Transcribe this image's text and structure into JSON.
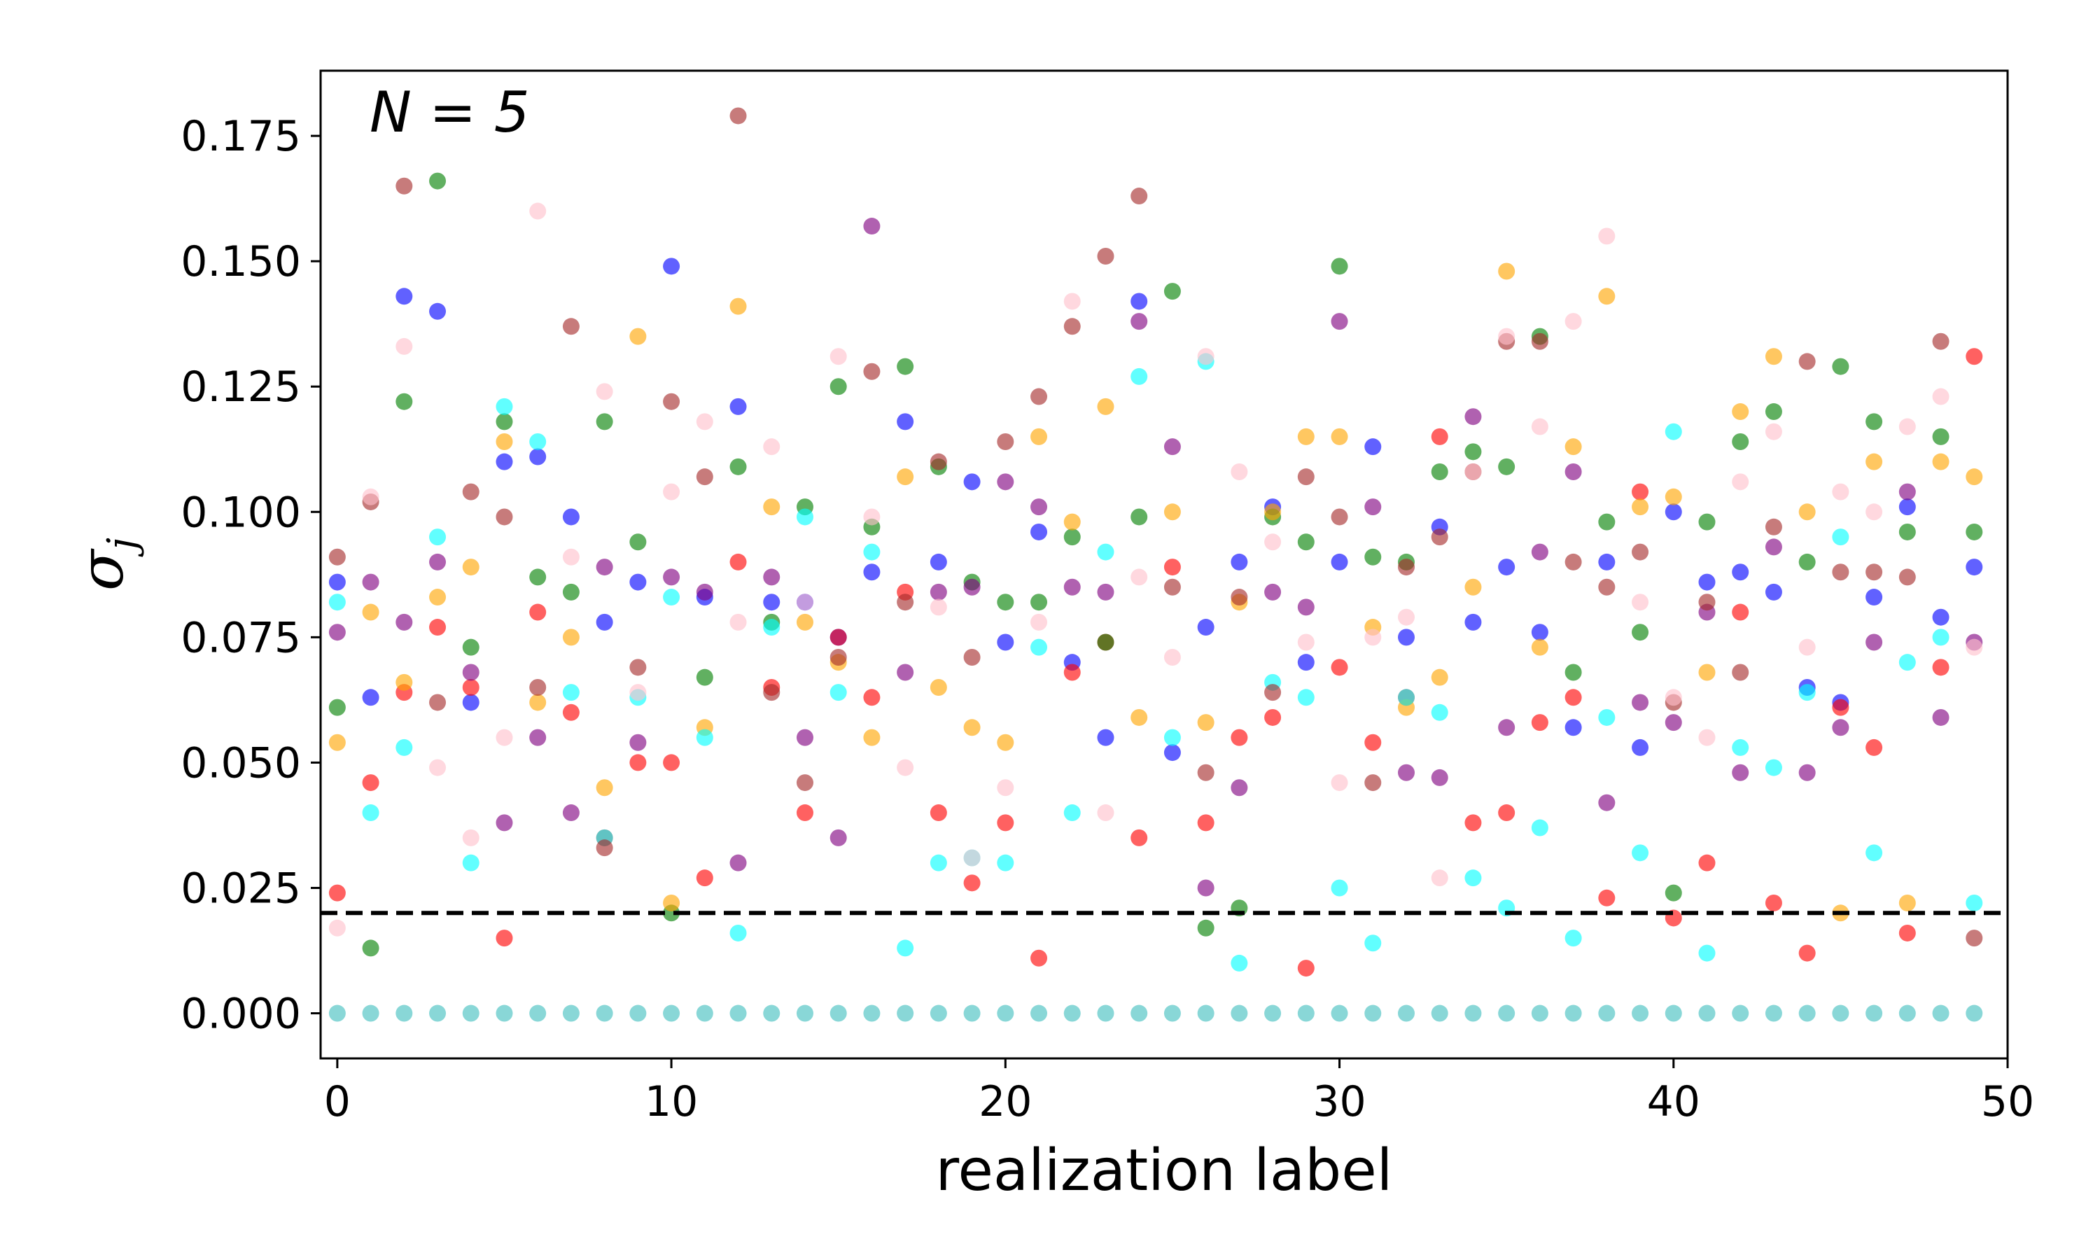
{
  "chart_data": {
    "type": "scatter",
    "title": "",
    "annotation": "N = 5",
    "xlabel": "realization label",
    "ylabel": "σ_j",
    "ylabel_main": "σ",
    "ylabel_sub": "j",
    "xlim": [
      -0.5,
      50
    ],
    "ylim": [
      -0.009,
      0.188
    ],
    "xticks": [
      0,
      10,
      20,
      30,
      40,
      50
    ],
    "xtick_labels": [
      "0",
      "10",
      "20",
      "30",
      "40",
      "50"
    ],
    "yticks": [
      0.0,
      0.025,
      0.05,
      0.075,
      0.1,
      0.125,
      0.15,
      0.175
    ],
    "ytick_labels": [
      "0.000",
      "0.025",
      "0.050",
      "0.075",
      "0.100",
      "0.125",
      "0.150",
      "0.175"
    ],
    "grid": false,
    "reference_line": {
      "y": 0.02,
      "style": "dashed",
      "color": "#000000"
    },
    "series": [
      {
        "color": "#0000ff",
        "values": [
          0.086,
          0.063,
          0.143,
          0.14,
          0.062,
          0.11,
          0.111,
          0.099,
          0.078,
          0.086,
          0.149,
          0.083,
          0.121,
          0.082,
          0.082,
          0.075,
          0.088,
          0.118,
          0.09,
          0.106,
          0.074,
          0.096,
          0.07,
          0.055,
          0.142,
          0.052,
          0.077,
          0.09,
          0.101,
          0.07,
          0.09,
          0.113,
          0.075,
          0.097,
          0.078,
          0.089,
          0.076,
          0.057,
          0.09,
          0.053,
          0.1,
          0.086,
          0.088,
          0.084,
          0.065,
          0.062,
          0.083,
          0.101,
          0.079,
          0.089
        ]
      },
      {
        "color": "#ff0000",
        "values": [
          0.024,
          0.046,
          0.064,
          0.077,
          0.065,
          0.015,
          0.08,
          0.06,
          0.035,
          0.05,
          0.05,
          0.027,
          0.09,
          0.065,
          0.04,
          0.075,
          0.063,
          0.084,
          0.04,
          0.026,
          0.038,
          0.011,
          0.068,
          0.074,
          0.035,
          0.089,
          0.038,
          0.055,
          0.059,
          0.009,
          0.069,
          0.054,
          0.063,
          0.115,
          0.038,
          0.04,
          0.058,
          0.063,
          0.023,
          0.104,
          0.019,
          0.03,
          0.08,
          0.022,
          0.012,
          0.061,
          0.053,
          0.016,
          0.069,
          0.131
        ]
      },
      {
        "color": "#008000",
        "values": [
          0.061,
          0.013,
          0.122,
          0.166,
          0.073,
          0.118,
          0.087,
          0.084,
          0.118,
          0.094,
          0.02,
          0.067,
          0.109,
          0.078,
          0.101,
          0.125,
          0.097,
          0.129,
          0.109,
          0.086,
          0.082,
          0.082,
          0.095,
          0.074,
          0.099,
          0.144,
          0.017,
          0.021,
          0.099,
          0.094,
          0.149,
          0.091,
          0.09,
          0.108,
          0.112,
          0.109,
          0.135,
          0.068,
          0.098,
          0.076,
          0.024,
          0.098,
          0.114,
          0.12,
          0.09,
          0.129,
          0.118,
          0.096,
          0.115,
          0.096
        ]
      },
      {
        "color": "#ffa500",
        "values": [
          0.054,
          0.08,
          0.066,
          0.083,
          0.089,
          0.114,
          0.062,
          0.075,
          0.045,
          0.135,
          0.022,
          0.057,
          0.141,
          0.101,
          0.078,
          0.07,
          0.055,
          0.107,
          0.065,
          0.057,
          0.054,
          0.115,
          0.098,
          0.121,
          0.059,
          0.1,
          0.058,
          0.082,
          0.1,
          0.115,
          0.115,
          0.077,
          0.061,
          0.067,
          0.085,
          0.148,
          0.073,
          0.113,
          0.143,
          0.101,
          0.103,
          0.068,
          0.12,
          0.131,
          0.1,
          0.02,
          0.11,
          0.022,
          0.11,
          0.107
        ]
      },
      {
        "color": "#00ffff",
        "values": [
          0.082,
          0.04,
          0.053,
          0.095,
          0.03,
          0.121,
          0.114,
          0.064,
          0.035,
          0.063,
          0.083,
          0.055,
          0.016,
          0.077,
          0.099,
          0.064,
          0.092,
          0.013,
          0.03,
          0.031,
          0.03,
          0.073,
          0.04,
          0.092,
          0.127,
          0.055,
          0.13,
          0.01,
          0.066,
          0.063,
          0.025,
          0.014,
          0.063,
          0.06,
          0.027,
          0.021,
          0.037,
          0.015,
          0.059,
          0.032,
          0.116,
          0.012,
          0.053,
          0.049,
          0.064,
          0.095,
          0.032,
          0.07,
          0.075,
          0.022
        ]
      },
      {
        "color": "#800080",
        "values": [
          0.076,
          0.086,
          0.078,
          0.09,
          0.068,
          0.038,
          0.055,
          0.04,
          0.089,
          0.054,
          0.087,
          0.084,
          0.03,
          0.087,
          0.055,
          0.035,
          0.157,
          0.068,
          0.084,
          0.085,
          0.106,
          0.101,
          0.085,
          0.084,
          0.138,
          0.113,
          0.025,
          0.045,
          0.084,
          0.081,
          0.138,
          0.101,
          0.048,
          0.047,
          0.119,
          0.057,
          0.092,
          0.108,
          0.042,
          0.062,
          0.058,
          0.08,
          0.048,
          0.093,
          0.048,
          0.057,
          0.074,
          0.104,
          0.059,
          0.074
        ]
      },
      {
        "color": "#a52a2a",
        "values": [
          0.091,
          0.102,
          0.165,
          0.062,
          0.104,
          0.099,
          0.065,
          0.137,
          0.033,
          0.069,
          0.122,
          0.107,
          0.179,
          0.064,
          0.046,
          0.071,
          0.128,
          0.082,
          0.11,
          0.071,
          0.114,
          0.123,
          0.137,
          0.151,
          0.163,
          0.085,
          0.048,
          0.083,
          0.064,
          0.107,
          0.099,
          0.046,
          0.089,
          0.095,
          0.108,
          0.134,
          0.134,
          0.09,
          0.085,
          0.092,
          0.062,
          0.082,
          0.068,
          0.097,
          0.13,
          0.088,
          0.088,
          0.087,
          0.134,
          0.015
        ]
      },
      {
        "color": "#ffc0cb",
        "values": [
          0.017,
          0.103,
          0.133,
          0.049,
          0.035,
          0.055,
          0.16,
          0.091,
          0.124,
          0.064,
          0.104,
          0.118,
          0.078,
          0.113,
          0.082,
          0.131,
          0.099,
          0.049,
          0.081,
          0.031,
          0.045,
          0.078,
          0.142,
          0.04,
          0.087,
          0.071,
          0.131,
          0.108,
          0.094,
          0.074,
          0.046,
          0.075,
          0.079,
          0.027,
          0.108,
          0.135,
          0.117,
          0.138,
          0.155,
          0.082,
          0.063,
          0.055,
          0.106,
          0.116,
          0.073,
          0.104,
          0.1,
          0.117,
          0.123,
          0.073
        ]
      },
      {
        "color": "#40bfbf",
        "values": [
          0,
          0,
          0,
          0,
          0,
          0,
          0,
          0,
          0,
          0,
          0,
          0,
          0,
          0,
          0,
          0,
          0,
          0,
          0,
          0,
          0,
          0,
          0,
          0,
          0,
          0,
          0,
          0,
          0,
          0,
          0,
          0,
          0,
          0,
          0,
          0,
          0,
          0,
          0,
          0,
          0,
          0,
          0,
          0,
          0,
          0,
          0,
          0,
          0,
          0
        ]
      }
    ]
  }
}
